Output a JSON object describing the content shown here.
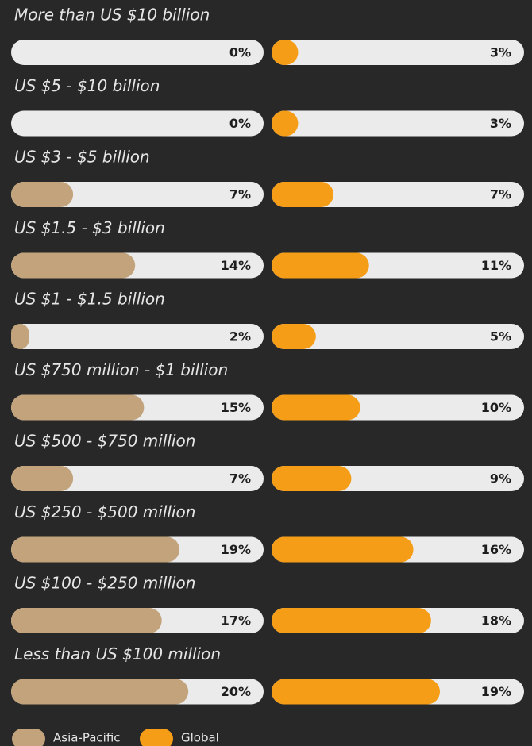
{
  "chart_data": {
    "type": "bar",
    "orientation": "horizontal",
    "categories": [
      "More than US $10 billion",
      "US $5 - $10 billion",
      "US $3 - $5 billion",
      "US $1.5 - $3 billion",
      "US $1 - $1.5 billion",
      "US $750 million - $1 billion",
      "US $500 - $750 million",
      "US $250 - $500 million",
      "US $100 - $250 million",
      "Less than US $100 million"
    ],
    "series": [
      {
        "name": "Asia-Pacific",
        "color": "#c2a37b",
        "values": [
          0,
          0,
          7,
          14,
          2,
          15,
          7,
          19,
          17,
          20
        ],
        "value_labels": [
          "0%",
          "0%",
          "7%",
          "14%",
          "2%",
          "15%",
          "7%",
          "19%",
          "17%",
          "20%"
        ]
      },
      {
        "name": "Global",
        "color": "#f59d16",
        "values": [
          3,
          3,
          7,
          11,
          5,
          10,
          9,
          16,
          18,
          19
        ],
        "value_labels": [
          "3%",
          "3%",
          "7%",
          "11%",
          "5%",
          "10%",
          "9%",
          "16%",
          "18%",
          "19%"
        ]
      }
    ],
    "xlim": [
      0,
      28.5
    ],
    "track_color": "#ebebeb"
  }
}
